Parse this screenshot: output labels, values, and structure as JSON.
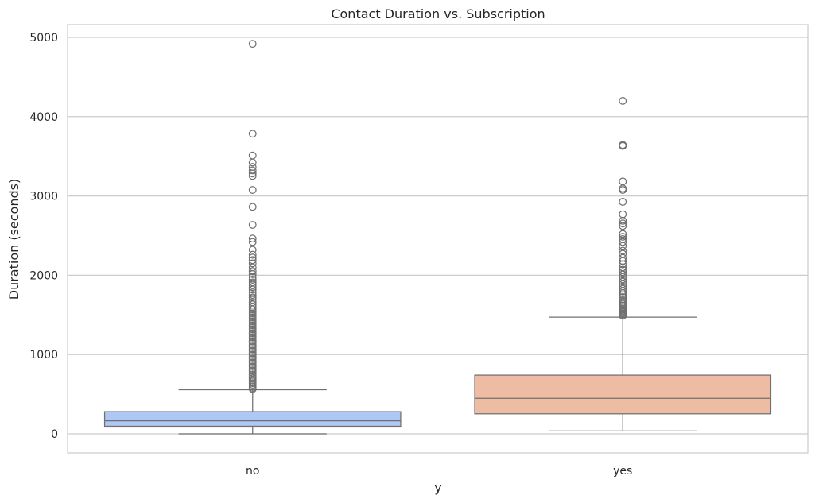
{
  "chart_data": {
    "type": "box",
    "title": "Contact Duration vs. Subscription",
    "xlabel": "y",
    "ylabel": "Duration (seconds)",
    "categories": [
      "no",
      "yes"
    ],
    "ylim": [
      -240,
      5160
    ],
    "yticks": [
      0,
      1000,
      2000,
      3000,
      4000,
      5000
    ],
    "grid": "horizontal",
    "boxes": [
      {
        "category": "no",
        "color": "#aec7f4",
        "whisker_low": 0,
        "q1": 96,
        "median": 164,
        "q3": 280,
        "whisker_high": 556,
        "outliers": [
          4918,
          3785,
          3510,
          3422,
          3366,
          3322,
          3284,
          3253,
          3076,
          2862,
          2635,
          2463,
          2420,
          2320,
          2259,
          2223,
          2191,
          2150,
          2100,
          2052,
          2015,
          1978,
          1945,
          1910,
          1880,
          1850,
          1820,
          1785,
          1752,
          1720,
          1690,
          1660,
          1630,
          1600,
          1570,
          1545,
          1520,
          1495,
          1470,
          1445,
          1420,
          1395,
          1370,
          1345,
          1320,
          1295,
          1270,
          1245,
          1220,
          1195,
          1170,
          1145,
          1120,
          1095,
          1070,
          1045,
          1020,
          995,
          970,
          945,
          920,
          895,
          870,
          845,
          820,
          795,
          770,
          745,
          720,
          700,
          680,
          660,
          640,
          620,
          600,
          580,
          565
        ]
      },
      {
        "category": "yes",
        "color": "#eebba3",
        "whisker_low": 37,
        "q1": 253,
        "median": 449,
        "q3": 741,
        "whisker_high": 1472,
        "outliers": [
          4199,
          3643,
          3631,
          3183,
          3094,
          3076,
          2926,
          2769,
          2687,
          2653,
          2621,
          2520,
          2485,
          2456,
          2420,
          2370,
          2310,
          2270,
          2219,
          2180,
          2140,
          2100,
          2070,
          2040,
          2010,
          1980,
          1950,
          1920,
          1890,
          1860,
          1830,
          1800,
          1775,
          1750,
          1725,
          1700,
          1680,
          1660,
          1640,
          1620,
          1600,
          1580,
          1565,
          1550,
          1535,
          1520,
          1505,
          1490
        ]
      }
    ]
  }
}
